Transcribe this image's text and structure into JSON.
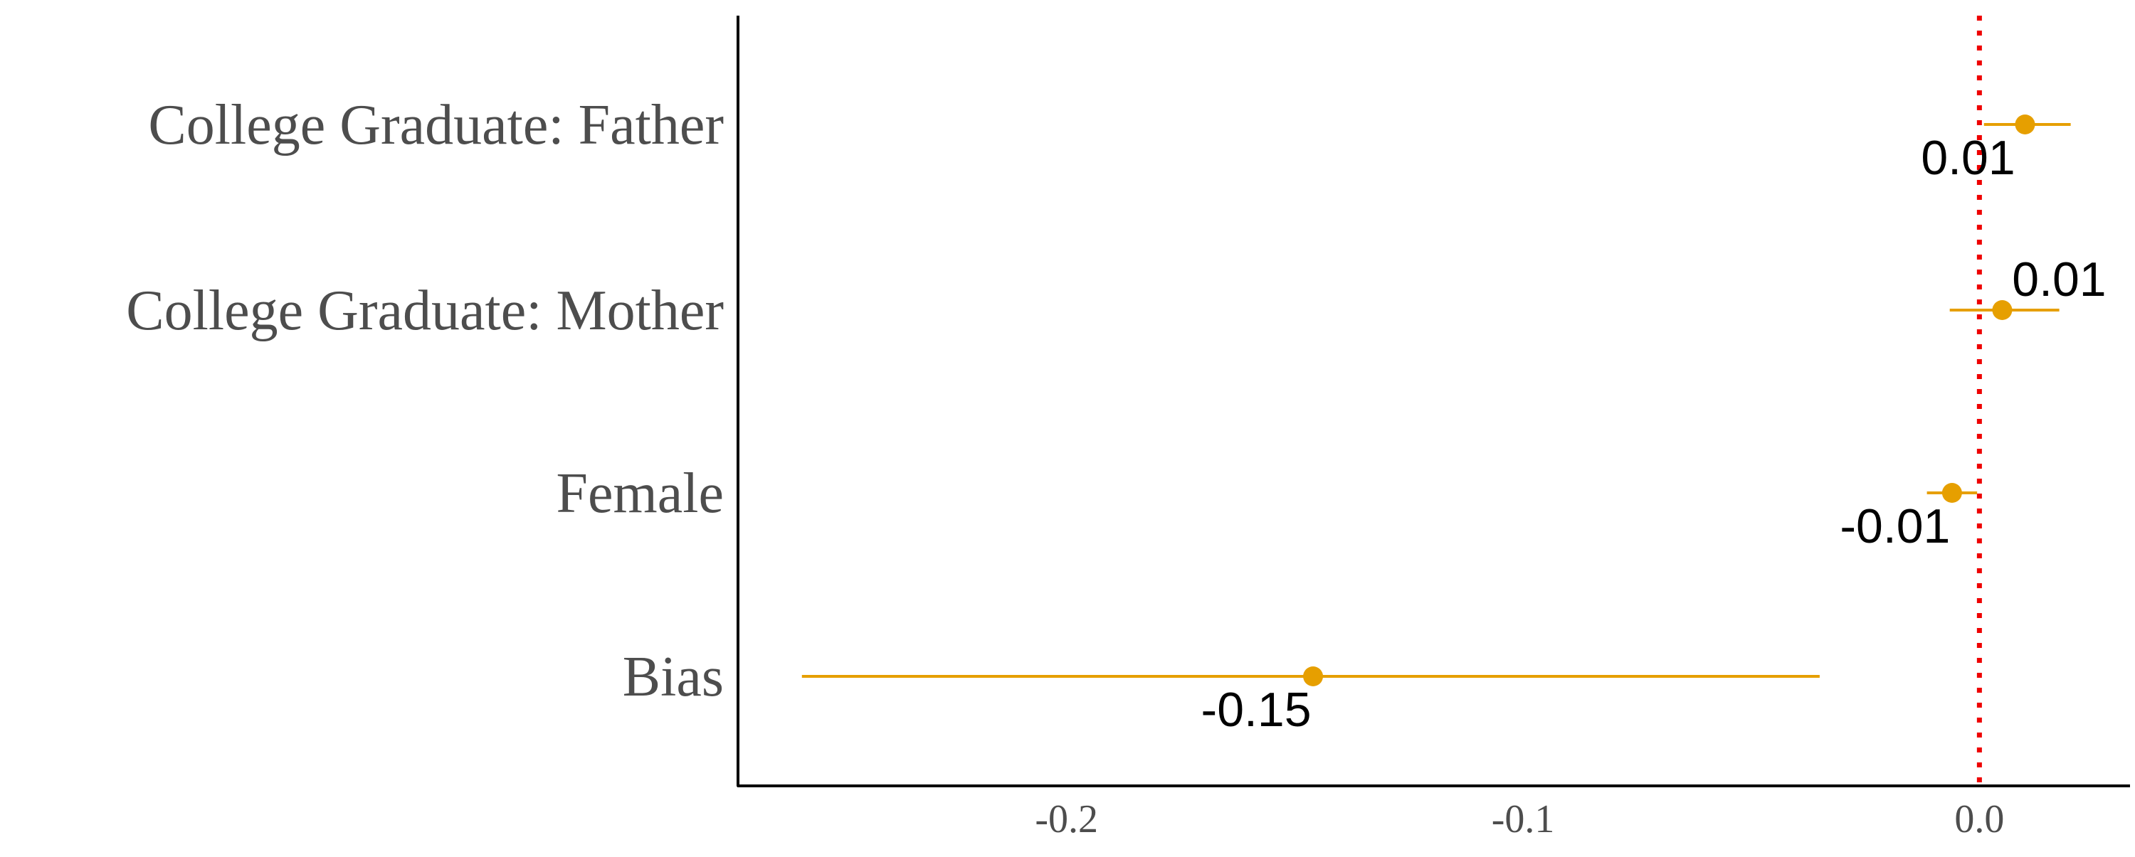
{
  "chart_data": {
    "type": "scatter",
    "orientation": "horizontal",
    "categories": [
      "College Graduate: Father",
      "College Graduate: Mother",
      "Female",
      "Bias"
    ],
    "points": [
      {
        "category": "College Graduate: Father",
        "estimate": 0.01,
        "ci_low": 0.001,
        "ci_high": 0.02,
        "label": "0.01",
        "label_position": "below"
      },
      {
        "category": "College Graduate: Mother",
        "estimate": 0.005,
        "ci_low": -0.0065,
        "ci_high": 0.0175,
        "label": "0.01",
        "label_position": "above"
      },
      {
        "category": "Female",
        "estimate": -0.006,
        "ci_low": -0.0115,
        "ci_high": -0.0005,
        "label": "-0.01",
        "label_position": "below"
      },
      {
        "category": "Bias",
        "estimate": -0.146,
        "ci_low": -0.258,
        "ci_high": -0.035,
        "label": "-0.15",
        "label_position": "below"
      }
    ],
    "x_ticks": [
      -0.2,
      -0.1,
      0.0
    ],
    "x_tick_labels": [
      "-0.2",
      "-0.1",
      "0.0"
    ],
    "xlim": [
      -0.272,
      0.033
    ],
    "reference_line": {
      "x": 0,
      "style": "dotted"
    },
    "xlabel": "",
    "ylabel": "",
    "title": "",
    "grid": false,
    "legend": "none",
    "colors": {
      "point": "#E69F00",
      "ci": "#E69F00",
      "reference_line": "#EE0000",
      "axis": "#000000",
      "tick_label": "#4D4D4D",
      "value_label": "#000000"
    }
  }
}
